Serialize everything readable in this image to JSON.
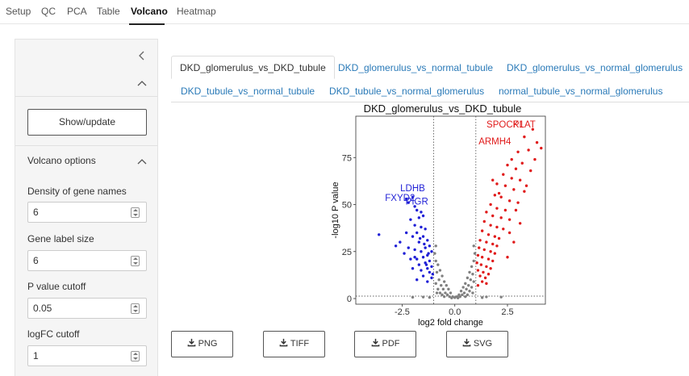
{
  "nav": {
    "tabs": [
      "Setup",
      "QC",
      "PCA",
      "Table",
      "Volcano",
      "Heatmap"
    ],
    "active": "Volcano"
  },
  "sidebar": {
    "collapse_icon": "chevron-left-icon",
    "show_update_label": "Show/update",
    "section_title": "Volcano options",
    "fields": [
      {
        "label": "Density of gene names",
        "value": "6"
      },
      {
        "label": "Gene label size",
        "value": "6"
      },
      {
        "label": "P value cutoff",
        "value": "0.05"
      },
      {
        "label": "logFC cutoff",
        "value": "1"
      }
    ]
  },
  "comparison_tabs": {
    "items": [
      "DKD_glomerulus_vs_DKD_tubule",
      "DKD_glomerulus_vs_normal_tubule",
      "DKD_glomerulus_vs_normal_glomerulus",
      "DKD_tubule_vs_normal_tubule",
      "DKD_tubule_vs_normal_glomerulus",
      "normal_tubule_vs_normal_glomerulus"
    ],
    "active": "DKD_glomerulus_vs_DKD_tubule"
  },
  "downloads": [
    {
      "label": "PNG",
      "icon": "download-icon"
    },
    {
      "label": "TIFF",
      "icon": "download-icon"
    },
    {
      "label": "PDF",
      "icon": "download-icon"
    },
    {
      "label": "SVG",
      "icon": "download-icon"
    }
  ],
  "chart_data": {
    "type": "scatter",
    "title": "DKD_glomerulus_vs_DKD_tubule",
    "xlabel": "log2 fold change",
    "ylabel": "-log10 P value",
    "xlim": [
      -4.7,
      4.3
    ],
    "ylim": [
      -3,
      97
    ],
    "xticks": [
      -2.5,
      0.0,
      2.5
    ],
    "xtick_labels": [
      "-2.5",
      "0.0",
      "2.5"
    ],
    "yticks": [
      0,
      25,
      50,
      75
    ],
    "ytick_labels": [
      "0",
      "25",
      "50",
      "75"
    ],
    "fc_cutoff": 1,
    "p_line": 1.3,
    "colors": {
      "down": "#1f1fd6",
      "up": "#e01a1a",
      "ns": "#808080"
    },
    "labels": [
      {
        "text": "LDHB",
        "x": -2.0,
        "y": 57,
        "group": "down"
      },
      {
        "text": "FXYD2",
        "x": -2.6,
        "y": 52,
        "group": "down"
      },
      {
        "text": "PIGR",
        "x": -1.8,
        "y": 50,
        "group": "down"
      },
      {
        "text": "SPOCK1",
        "x": 2.4,
        "y": 91,
        "group": "up"
      },
      {
        "text": "PLAT",
        "x": 3.3,
        "y": 91,
        "group": "up"
      },
      {
        "text": "ARMH4",
        "x": 1.9,
        "y": 82,
        "group": "up"
      }
    ],
    "series": [
      {
        "group": "down",
        "points": [
          [
            -2.3,
            53
          ],
          [
            -2.2,
            51
          ],
          [
            -2.0,
            54
          ],
          [
            -1.9,
            49
          ],
          [
            -1.8,
            47
          ],
          [
            -1.6,
            46
          ],
          [
            -1.5,
            44
          ],
          [
            -1.7,
            43
          ],
          [
            -2.1,
            42
          ],
          [
            -1.9,
            39
          ],
          [
            -1.6,
            38
          ],
          [
            -1.4,
            37
          ],
          [
            -1.8,
            35
          ],
          [
            -2.0,
            33
          ],
          [
            -1.5,
            33
          ],
          [
            -1.3,
            31
          ],
          [
            -1.7,
            30
          ],
          [
            -2.6,
            30
          ],
          [
            -2.8,
            28
          ],
          [
            -3.6,
            34
          ],
          [
            -2.3,
            35
          ],
          [
            -1.2,
            28
          ],
          [
            -1.4,
            27
          ],
          [
            -1.9,
            26
          ],
          [
            -1.6,
            25
          ],
          [
            -1.1,
            25
          ],
          [
            -1.3,
            23
          ],
          [
            -1.5,
            22
          ],
          [
            -1.8,
            21
          ],
          [
            -2.1,
            21
          ],
          [
            -1.2,
            20
          ],
          [
            -1.4,
            19
          ],
          [
            -1.7,
            18
          ],
          [
            -1.1,
            17
          ],
          [
            -1.3,
            16
          ],
          [
            -1.6,
            15
          ],
          [
            -2.0,
            16
          ],
          [
            -1.2,
            14
          ],
          [
            -1.5,
            12
          ],
          [
            -1.1,
            11
          ],
          [
            -1.8,
            10
          ],
          [
            -1.3,
            9
          ],
          [
            -1.05,
            13
          ],
          [
            -1.25,
            24
          ],
          [
            -1.45,
            29
          ],
          [
            -1.65,
            32
          ],
          [
            -2.2,
            27
          ],
          [
            -2.4,
            24
          ],
          [
            -1.9,
            22
          ],
          [
            -1.35,
            18
          ]
        ]
      },
      {
        "group": "up",
        "points": [
          [
            3.7,
            90
          ],
          [
            3.3,
            86
          ],
          [
            3.9,
            83
          ],
          [
            4.1,
            80
          ],
          [
            3.5,
            79
          ],
          [
            3.0,
            78
          ],
          [
            2.7,
            74
          ],
          [
            3.2,
            72
          ],
          [
            2.5,
            71
          ],
          [
            2.9,
            69
          ],
          [
            3.6,
            68
          ],
          [
            2.3,
            66
          ],
          [
            2.7,
            64
          ],
          [
            3.1,
            63
          ],
          [
            2.0,
            61
          ],
          [
            2.4,
            60
          ],
          [
            2.8,
            58
          ],
          [
            3.3,
            57
          ],
          [
            1.9,
            55
          ],
          [
            2.2,
            54
          ],
          [
            2.6,
            52
          ],
          [
            3.0,
            51
          ],
          [
            1.7,
            50
          ],
          [
            2.0,
            48
          ],
          [
            2.4,
            47
          ],
          [
            1.5,
            46
          ],
          [
            1.8,
            44
          ],
          [
            2.2,
            43
          ],
          [
            2.6,
            42
          ],
          [
            1.4,
            41
          ],
          [
            1.7,
            39
          ],
          [
            2.0,
            38
          ],
          [
            2.3,
            37
          ],
          [
            1.3,
            36
          ],
          [
            1.6,
            34
          ],
          [
            1.9,
            33
          ],
          [
            2.1,
            32
          ],
          [
            1.2,
            31
          ],
          [
            1.5,
            30
          ],
          [
            1.8,
            29
          ],
          [
            2.0,
            28
          ],
          [
            1.15,
            27
          ],
          [
            1.4,
            26
          ],
          [
            1.7,
            25
          ],
          [
            1.9,
            24
          ],
          [
            1.1,
            23
          ],
          [
            1.3,
            22
          ],
          [
            1.6,
            21
          ],
          [
            1.8,
            20
          ],
          [
            1.05,
            19
          ],
          [
            1.25,
            18
          ],
          [
            1.5,
            17
          ],
          [
            1.7,
            16
          ],
          [
            1.1,
            15
          ],
          [
            1.35,
            14
          ],
          [
            1.6,
            13
          ],
          [
            1.2,
            12
          ],
          [
            1.45,
            11
          ],
          [
            1.3,
            9
          ],
          [
            1.1,
            7
          ],
          [
            1.5,
            8
          ],
          [
            2.5,
            22
          ],
          [
            2.8,
            30
          ],
          [
            3.1,
            40
          ],
          [
            2.9,
            47
          ],
          [
            2.1,
            56
          ],
          [
            1.8,
            63
          ],
          [
            2.6,
            35
          ],
          [
            3.4,
            60
          ],
          [
            3.8,
            74
          ]
        ]
      },
      {
        "group": "ns",
        "points": [
          [
            -0.9,
            20
          ],
          [
            -0.8,
            18
          ],
          [
            -0.7,
            15
          ],
          [
            -0.6,
            12
          ],
          [
            -0.5,
            9
          ],
          [
            -0.4,
            7
          ],
          [
            -0.3,
            5
          ],
          [
            -0.2,
            3
          ],
          [
            -0.1,
            1
          ],
          [
            0.0,
            0.5
          ],
          [
            0.1,
            1
          ],
          [
            0.2,
            2
          ],
          [
            0.3,
            4
          ],
          [
            0.4,
            6
          ],
          [
            0.5,
            8
          ],
          [
            0.6,
            11
          ],
          [
            0.7,
            14
          ],
          [
            0.8,
            17
          ],
          [
            0.9,
            20
          ],
          [
            0.95,
            24
          ],
          [
            -0.95,
            24
          ],
          [
            -0.85,
            14
          ],
          [
            -0.75,
            10
          ],
          [
            -0.65,
            7
          ],
          [
            -0.55,
            5
          ],
          [
            -0.45,
            3
          ],
          [
            -0.35,
            2
          ],
          [
            -0.25,
            1
          ],
          [
            0.25,
            1
          ],
          [
            0.35,
            2
          ],
          [
            0.45,
            3
          ],
          [
            0.55,
            5
          ],
          [
            0.65,
            7
          ],
          [
            0.75,
            10
          ],
          [
            0.85,
            13
          ],
          [
            -0.9,
            8
          ],
          [
            -0.8,
            5
          ],
          [
            -0.7,
            3
          ],
          [
            0.7,
            4
          ],
          [
            0.8,
            6
          ],
          [
            0.9,
            9
          ],
          [
            -0.6,
            2
          ],
          [
            0.6,
            2
          ],
          [
            -0.15,
            0.3
          ],
          [
            0.15,
            0.3
          ],
          [
            -0.9,
            28
          ],
          [
            0.9,
            28
          ],
          [
            -0.85,
            3
          ],
          [
            0.85,
            3
          ],
          [
            -0.5,
            1
          ],
          [
            0.5,
            1
          ],
          [
            -1.5,
            0.8
          ],
          [
            1.5,
            0.9
          ],
          [
            -2.0,
            0.7
          ],
          [
            2.2,
            0.8
          ],
          [
            -1.2,
            0.6
          ],
          [
            1.3,
            0.5
          ]
        ]
      }
    ]
  }
}
